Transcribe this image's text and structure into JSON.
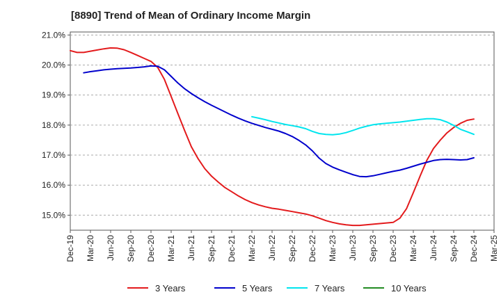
{
  "chart_data": {
    "type": "line",
    "title": "[8890]  Trend of Mean of Ordinary Income Margin",
    "xlabel": "",
    "ylabel": "",
    "x_ticks": [
      "Dec-19",
      "Mar-20",
      "Jun-20",
      "Sep-20",
      "Dec-20",
      "Mar-21",
      "Jun-21",
      "Sep-21",
      "Dec-21",
      "Mar-22",
      "Jun-22",
      "Sep-22",
      "Dec-22",
      "Mar-23",
      "Jun-23",
      "Sep-23",
      "Dec-23",
      "Mar-24",
      "Jun-24",
      "Sep-24",
      "Dec-24",
      "Mar-25"
    ],
    "y_ticks": [
      "15.0%",
      "16.0%",
      "17.0%",
      "18.0%",
      "19.0%",
      "20.0%",
      "21.0%"
    ],
    "ylim": [
      14.5,
      21.1
    ],
    "grid": "horizontal dashed",
    "legend_position": "bottom",
    "series": [
      {
        "name": "3 Years",
        "color": "#e31a1c",
        "points": [
          [
            "Dec-19",
            20.48
          ],
          [
            "Jan-20",
            20.42
          ],
          [
            "Feb-20",
            20.42
          ],
          [
            "Mar-20",
            20.46
          ],
          [
            "Apr-20",
            20.5
          ],
          [
            "May-20",
            20.54
          ],
          [
            "Jun-20",
            20.57
          ],
          [
            "Jul-20",
            20.56
          ],
          [
            "Aug-20",
            20.51
          ],
          [
            "Sep-20",
            20.42
          ],
          [
            "Oct-20",
            20.32
          ],
          [
            "Nov-20",
            20.22
          ],
          [
            "Dec-20",
            20.12
          ],
          [
            "Jan-21",
            19.92
          ],
          [
            "Feb-21",
            19.52
          ],
          [
            "Mar-21",
            18.95
          ],
          [
            "Apr-21",
            18.38
          ],
          [
            "May-21",
            17.82
          ],
          [
            "Jun-21",
            17.28
          ],
          [
            "Jul-21",
            16.88
          ],
          [
            "Aug-21",
            16.55
          ],
          [
            "Sep-21",
            16.3
          ],
          [
            "Oct-21",
            16.1
          ],
          [
            "Nov-21",
            15.92
          ],
          [
            "Dec-21",
            15.78
          ],
          [
            "Jan-22",
            15.64
          ],
          [
            "Feb-22",
            15.52
          ],
          [
            "Mar-22",
            15.42
          ],
          [
            "Apr-22",
            15.34
          ],
          [
            "May-22",
            15.28
          ],
          [
            "Jun-22",
            15.23
          ],
          [
            "Jul-22",
            15.2
          ],
          [
            "Aug-22",
            15.16
          ],
          [
            "Sep-22",
            15.12
          ],
          [
            "Oct-22",
            15.08
          ],
          [
            "Nov-22",
            15.04
          ],
          [
            "Dec-22",
            14.98
          ],
          [
            "Jan-23",
            14.9
          ],
          [
            "Feb-23",
            14.82
          ],
          [
            "Mar-23",
            14.76
          ],
          [
            "Apr-23",
            14.71
          ],
          [
            "May-23",
            14.68
          ],
          [
            "Jun-23",
            14.66
          ],
          [
            "Jul-23",
            14.66
          ],
          [
            "Aug-23",
            14.68
          ],
          [
            "Sep-23",
            14.7
          ],
          [
            "Oct-23",
            14.72
          ],
          [
            "Nov-23",
            14.74
          ],
          [
            "Dec-23",
            14.76
          ],
          [
            "Jan-24",
            14.9
          ],
          [
            "Feb-24",
            15.22
          ],
          [
            "Mar-24",
            15.75
          ],
          [
            "Apr-24",
            16.3
          ],
          [
            "May-24",
            16.82
          ],
          [
            "Jun-24",
            17.22
          ],
          [
            "Jul-24",
            17.5
          ],
          [
            "Aug-24",
            17.74
          ],
          [
            "Sep-24",
            17.92
          ],
          [
            "Oct-24",
            18.06
          ],
          [
            "Nov-24",
            18.16
          ],
          [
            "Dec-24",
            18.2
          ]
        ]
      },
      {
        "name": "5 Years",
        "color": "#0000cc",
        "points": [
          [
            "Feb-20",
            19.74
          ],
          [
            "Mar-20",
            19.78
          ],
          [
            "Apr-20",
            19.81
          ],
          [
            "May-20",
            19.84
          ],
          [
            "Jun-20",
            19.86
          ],
          [
            "Jul-20",
            19.88
          ],
          [
            "Aug-20",
            19.89
          ],
          [
            "Sep-20",
            19.9
          ],
          [
            "Oct-20",
            19.92
          ],
          [
            "Nov-20",
            19.94
          ],
          [
            "Dec-20",
            19.97
          ],
          [
            "Jan-21",
            19.96
          ],
          [
            "Feb-21",
            19.84
          ],
          [
            "Mar-21",
            19.62
          ],
          [
            "Apr-21",
            19.4
          ],
          [
            "May-21",
            19.21
          ],
          [
            "Jun-21",
            19.05
          ],
          [
            "Jul-21",
            18.91
          ],
          [
            "Aug-21",
            18.78
          ],
          [
            "Sep-21",
            18.66
          ],
          [
            "Oct-21",
            18.55
          ],
          [
            "Nov-21",
            18.44
          ],
          [
            "Dec-21",
            18.33
          ],
          [
            "Jan-22",
            18.23
          ],
          [
            "Feb-22",
            18.14
          ],
          [
            "Mar-22",
            18.06
          ],
          [
            "Apr-22",
            17.99
          ],
          [
            "May-22",
            17.92
          ],
          [
            "Jun-22",
            17.86
          ],
          [
            "Jul-22",
            17.8
          ],
          [
            "Aug-22",
            17.72
          ],
          [
            "Sep-22",
            17.62
          ],
          [
            "Oct-22",
            17.49
          ],
          [
            "Nov-22",
            17.34
          ],
          [
            "Dec-22",
            17.14
          ],
          [
            "Jan-23",
            16.9
          ],
          [
            "Feb-23",
            16.72
          ],
          [
            "Mar-23",
            16.6
          ],
          [
            "Apr-23",
            16.51
          ],
          [
            "May-23",
            16.43
          ],
          [
            "Jun-23",
            16.35
          ],
          [
            "Jul-23",
            16.29
          ],
          [
            "Aug-23",
            16.28
          ],
          [
            "Sep-23",
            16.31
          ],
          [
            "Oct-23",
            16.36
          ],
          [
            "Nov-23",
            16.41
          ],
          [
            "Dec-23",
            16.46
          ],
          [
            "Jan-24",
            16.5
          ],
          [
            "Feb-24",
            16.56
          ],
          [
            "Mar-24",
            16.63
          ],
          [
            "Apr-24",
            16.7
          ],
          [
            "May-24",
            16.76
          ],
          [
            "Jun-24",
            16.82
          ],
          [
            "Jul-24",
            16.85
          ],
          [
            "Aug-24",
            16.86
          ],
          [
            "Sep-24",
            16.85
          ],
          [
            "Oct-24",
            16.84
          ],
          [
            "Nov-24",
            16.85
          ],
          [
            "Dec-24",
            16.91
          ]
        ]
      },
      {
        "name": "7 Years",
        "color": "#00e5ee",
        "points": [
          [
            "Mar-22",
            18.28
          ],
          [
            "Apr-22",
            18.23
          ],
          [
            "May-22",
            18.18
          ],
          [
            "Jun-22",
            18.12
          ],
          [
            "Jul-22",
            18.07
          ],
          [
            "Aug-22",
            18.02
          ],
          [
            "Sep-22",
            17.98
          ],
          [
            "Oct-22",
            17.94
          ],
          [
            "Nov-22",
            17.88
          ],
          [
            "Dec-22",
            17.79
          ],
          [
            "Jan-23",
            17.72
          ],
          [
            "Feb-23",
            17.69
          ],
          [
            "Mar-23",
            17.68
          ],
          [
            "Apr-23",
            17.7
          ],
          [
            "May-23",
            17.75
          ],
          [
            "Jun-23",
            17.82
          ],
          [
            "Jul-23",
            17.9
          ],
          [
            "Aug-23",
            17.96
          ],
          [
            "Sep-23",
            18.01
          ],
          [
            "Oct-23",
            18.04
          ],
          [
            "Nov-23",
            18.06
          ],
          [
            "Dec-23",
            18.08
          ],
          [
            "Jan-24",
            18.1
          ],
          [
            "Feb-24",
            18.13
          ],
          [
            "Mar-24",
            18.16
          ],
          [
            "Apr-24",
            18.19
          ],
          [
            "May-24",
            18.21
          ],
          [
            "Jun-24",
            18.21
          ],
          [
            "Jul-24",
            18.18
          ],
          [
            "Aug-24",
            18.1
          ],
          [
            "Sep-24",
            17.99
          ],
          [
            "Oct-24",
            17.86
          ],
          [
            "Nov-24",
            17.78
          ],
          [
            "Dec-24",
            17.69
          ]
        ]
      },
      {
        "name": "10 Years",
        "color": "#228b22",
        "points": []
      }
    ]
  }
}
